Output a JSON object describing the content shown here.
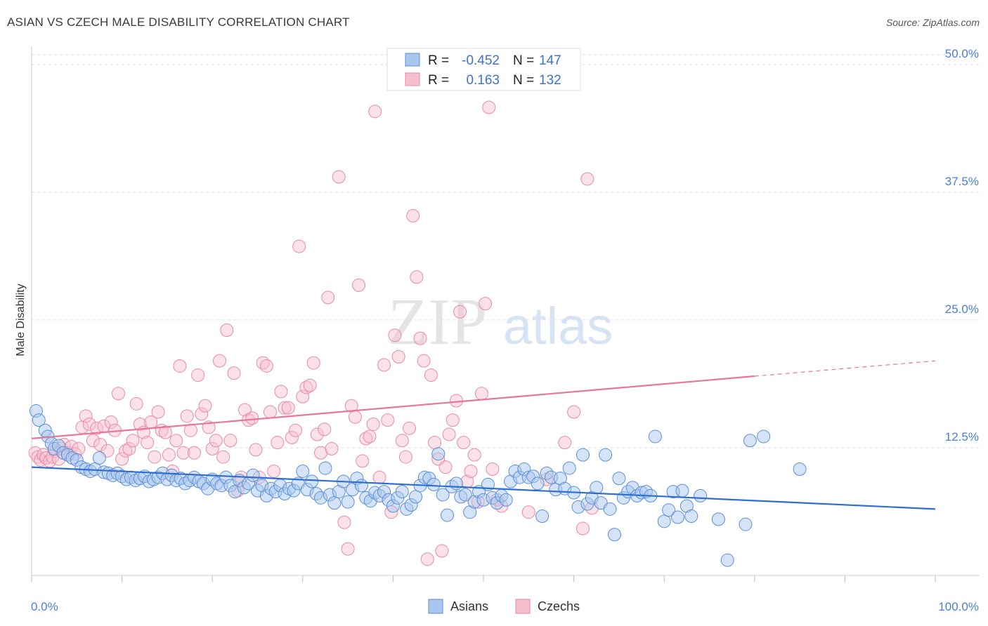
{
  "header": {
    "title": "ASIAN VS CZECH MALE DISABILITY CORRELATION CHART",
    "source": "Source: ZipAtlas.com"
  },
  "watermark": {
    "zip": "ZIP",
    "atlas": "atlas"
  },
  "legend_top": {
    "rows": [
      {
        "r_label": "R =",
        "r_value": "-0.452",
        "n_label": "N =",
        "n_value": "147"
      },
      {
        "r_label": "R =",
        "r_value": "0.163",
        "n_label": "N =",
        "n_value": "132"
      }
    ]
  },
  "legend_bottom": {
    "items": [
      "Asians",
      "Czechs"
    ]
  },
  "colors": {
    "asian_fill": "#a9c7ee",
    "asian_stroke": "#5b8fd6",
    "asian_line": "#2f6fd0",
    "czech_fill": "#f6bfcf",
    "czech_stroke": "#e889a6",
    "czech_line": "#e8759b",
    "tick_label": "#4a7fd4",
    "grid": "#dddddd"
  },
  "chart_data": {
    "type": "scatter",
    "title": "ASIAN VS CZECH MALE DISABILITY CORRELATION CHART",
    "xlabel": "",
    "ylabel": "Male Disability",
    "xlim": [
      0,
      100
    ],
    "ylim": [
      0,
      51.5
    ],
    "x_tick_labels": [
      "0.0%",
      "100.0%"
    ],
    "y_ticks": [
      12.5,
      25.0,
      37.5,
      50.0
    ],
    "y_tick_labels": [
      "12.5%",
      "25.0%",
      "37.5%",
      "50.0%"
    ],
    "grid": true,
    "legend_position": "top-center",
    "series": [
      {
        "name": "Asians",
        "r": -0.452,
        "n": 147,
        "trend": {
          "x": [
            0,
            100
          ],
          "y": [
            10.6,
            6.5
          ]
        },
        "points": [
          [
            0.5,
            16.1
          ],
          [
            0.8,
            15.2
          ],
          [
            1.5,
            14.2
          ],
          [
            1.8,
            13.6
          ],
          [
            2.2,
            12.9
          ],
          [
            2.5,
            12.4
          ],
          [
            3,
            12.7
          ],
          [
            3.5,
            12.0
          ],
          [
            4,
            11.8
          ],
          [
            4.5,
            11.5
          ],
          [
            5,
            11.3
          ],
          [
            5.5,
            10.6
          ],
          [
            6,
            10.4
          ],
          [
            6.5,
            10.2
          ],
          [
            7,
            10.4
          ],
          [
            7.5,
            11.5
          ],
          [
            8,
            10.1
          ],
          [
            8.5,
            10.0
          ],
          [
            9,
            9.8
          ],
          [
            9.5,
            10.0
          ],
          [
            10,
            9.7
          ],
          [
            10.5,
            9.4
          ],
          [
            11,
            9.6
          ],
          [
            11.5,
            9.3
          ],
          [
            12,
            9.5
          ],
          [
            12.5,
            9.7
          ],
          [
            13,
            9.2
          ],
          [
            13.5,
            9.4
          ],
          [
            14,
            9.6
          ],
          [
            14.5,
            10.0
          ],
          [
            15,
            9.4
          ],
          [
            15.5,
            9.8
          ],
          [
            16,
            9.3
          ],
          [
            16.5,
            9.5
          ],
          [
            17,
            9.0
          ],
          [
            17.5,
            9.3
          ],
          [
            18,
            9.6
          ],
          [
            18.5,
            9.2
          ],
          [
            19,
            9.0
          ],
          [
            19.5,
            8.5
          ],
          [
            20,
            9.4
          ],
          [
            20.5,
            9.0
          ],
          [
            21,
            8.8
          ],
          [
            21.5,
            9.6
          ],
          [
            22,
            8.8
          ],
          [
            22.5,
            8.2
          ],
          [
            23,
            9.3
          ],
          [
            23.5,
            8.6
          ],
          [
            24,
            9.0
          ],
          [
            24.5,
            9.8
          ],
          [
            25,
            8.3
          ],
          [
            25.5,
            8.8
          ],
          [
            26,
            7.8
          ],
          [
            26.5,
            8.5
          ],
          [
            27,
            8.2
          ],
          [
            27.5,
            8.8
          ],
          [
            28,
            8.0
          ],
          [
            28.5,
            8.5
          ],
          [
            29,
            8.3
          ],
          [
            29.5,
            9.0
          ],
          [
            30,
            10.2
          ],
          [
            30.5,
            8.4
          ],
          [
            31,
            9.2
          ],
          [
            31.5,
            8.0
          ],
          [
            32,
            7.6
          ],
          [
            32.5,
            10.5
          ],
          [
            33,
            7.9
          ],
          [
            33.5,
            7.1
          ],
          [
            34,
            8.2
          ],
          [
            34.5,
            9.2
          ],
          [
            35,
            7.2
          ],
          [
            35.5,
            8.4
          ],
          [
            36,
            9.5
          ],
          [
            36.5,
            8.8
          ],
          [
            37,
            7.6
          ],
          [
            37.5,
            7.3
          ],
          [
            38,
            8.1
          ],
          [
            38.5,
            7.8
          ],
          [
            39,
            8.2
          ],
          [
            39.5,
            7.4
          ],
          [
            40,
            6.8
          ],
          [
            40.5,
            7.6
          ],
          [
            41,
            8.2
          ],
          [
            41.5,
            6.5
          ],
          [
            42,
            6.9
          ],
          [
            42.5,
            7.7
          ],
          [
            43,
            8.8
          ],
          [
            43.5,
            9.6
          ],
          [
            44,
            9.5
          ],
          [
            44.5,
            8.9
          ],
          [
            45,
            11.9
          ],
          [
            45.5,
            7.9
          ],
          [
            46,
            5.9
          ],
          [
            46.5,
            8.7
          ],
          [
            47,
            9.0
          ],
          [
            47.5,
            7.7
          ],
          [
            48,
            7.9
          ],
          [
            48.5,
            6.2
          ],
          [
            49,
            7.2
          ],
          [
            49.5,
            8.2
          ],
          [
            50,
            7.4
          ],
          [
            50.5,
            8.9
          ],
          [
            51,
            7.6
          ],
          [
            51.5,
            7.1
          ],
          [
            52,
            7.8
          ],
          [
            52.5,
            7.4
          ],
          [
            53,
            9.2
          ],
          [
            53.5,
            10.2
          ],
          [
            54,
            9.6
          ],
          [
            54.5,
            10.4
          ],
          [
            55,
            9.6
          ],
          [
            55.5,
            9.7
          ],
          [
            56,
            9.0
          ],
          [
            56.5,
            5.8
          ],
          [
            57,
            10.0
          ],
          [
            57.5,
            9.6
          ],
          [
            58,
            8.4
          ],
          [
            58.5,
            9.5
          ],
          [
            59,
            8.5
          ],
          [
            59.5,
            10.5
          ],
          [
            60,
            8.1
          ],
          [
            60.5,
            6.7
          ],
          [
            61,
            11.8
          ],
          [
            61.5,
            7.0
          ],
          [
            62,
            7.6
          ],
          [
            62.5,
            8.6
          ],
          [
            63,
            7.1
          ],
          [
            63.5,
            11.8
          ],
          [
            64,
            6.5
          ],
          [
            64.5,
            4.0
          ],
          [
            65,
            9.5
          ],
          [
            65.5,
            7.6
          ],
          [
            66,
            8.2
          ],
          [
            66.5,
            8.6
          ],
          [
            67,
            7.8
          ],
          [
            67.5,
            8.1
          ],
          [
            68,
            8.2
          ],
          [
            68.5,
            7.8
          ],
          [
            69,
            13.6
          ],
          [
            70,
            5.3
          ],
          [
            70.5,
            6.4
          ],
          [
            71,
            8.2
          ],
          [
            71.5,
            5.7
          ],
          [
            72,
            8.3
          ],
          [
            72.5,
            6.8
          ],
          [
            73,
            5.8
          ],
          [
            74,
            7.8
          ],
          [
            76,
            5.5
          ],
          [
            77,
            1.5
          ],
          [
            79,
            5.0
          ],
          [
            79.5,
            13.2
          ],
          [
            81,
            13.6
          ],
          [
            85,
            10.4
          ]
        ]
      },
      {
        "name": "Czechs",
        "r": 0.163,
        "n": 132,
        "trend": {
          "x": [
            0,
            80
          ],
          "y": [
            13.4,
            19.5
          ]
        },
        "trend_dashed": {
          "x": [
            80,
            100
          ],
          "y": [
            19.5,
            21.0
          ]
        },
        "points": [
          [
            0.4,
            12.0
          ],
          [
            0.7,
            11.6
          ],
          [
            1,
            11.3
          ],
          [
            1.3,
            11.8
          ],
          [
            1.6,
            11.5
          ],
          [
            2,
            11.2
          ],
          [
            2.3,
            11.6
          ],
          [
            2.6,
            12.2
          ],
          [
            3,
            11.4
          ],
          [
            3.3,
            12.4
          ],
          [
            3.6,
            12.8
          ],
          [
            4,
            12.0
          ],
          [
            4.4,
            12.6
          ],
          [
            4.8,
            11.9
          ],
          [
            5.2,
            12.4
          ],
          [
            5.6,
            14.5
          ],
          [
            6,
            15.6
          ],
          [
            6.4,
            14.8
          ],
          [
            6.8,
            13.2
          ],
          [
            7.2,
            14.4
          ],
          [
            7.6,
            12.8
          ],
          [
            8,
            14.6
          ],
          [
            8.4,
            12.2
          ],
          [
            8.8,
            15.0
          ],
          [
            9.2,
            14.2
          ],
          [
            9.6,
            17.8
          ],
          [
            10,
            11.4
          ],
          [
            10.4,
            12.2
          ],
          [
            10.8,
            12.4
          ],
          [
            11.2,
            13.2
          ],
          [
            11.6,
            16.8
          ],
          [
            12,
            14.8
          ],
          [
            12.4,
            14.0
          ],
          [
            12.8,
            13.0
          ],
          [
            13.2,
            15.0
          ],
          [
            13.6,
            11.6
          ],
          [
            14,
            16.0
          ],
          [
            14.4,
            14.2
          ],
          [
            14.8,
            14.0
          ],
          [
            15.2,
            11.8
          ],
          [
            15.6,
            10.2
          ],
          [
            16,
            13.2
          ],
          [
            16.4,
            20.5
          ],
          [
            16.8,
            12.0
          ],
          [
            17.2,
            15.6
          ],
          [
            17.6,
            14.2
          ],
          [
            18,
            12.0
          ],
          [
            18.4,
            19.6
          ],
          [
            18.8,
            15.8
          ],
          [
            19.2,
            16.6
          ],
          [
            19.6,
            14.5
          ],
          [
            20,
            12.4
          ],
          [
            20.4,
            13.2
          ],
          [
            20.8,
            21.0
          ],
          [
            21.2,
            11.6
          ],
          [
            21.6,
            24.0
          ],
          [
            22,
            13.2
          ],
          [
            22.4,
            19.8
          ],
          [
            22.8,
            8.3
          ],
          [
            23.2,
            9.6
          ],
          [
            23.6,
            16.2
          ],
          [
            24,
            15.2
          ],
          [
            24.4,
            15.4
          ],
          [
            24.8,
            12.3
          ],
          [
            25.2,
            9.6
          ],
          [
            25.6,
            20.8
          ],
          [
            26,
            20.5
          ],
          [
            26.4,
            16.0
          ],
          [
            26.8,
            10.2
          ],
          [
            27.2,
            13.0
          ],
          [
            27.6,
            18.0
          ],
          [
            28,
            16.4
          ],
          [
            28.4,
            16.4
          ],
          [
            28.8,
            13.5
          ],
          [
            29.2,
            14.2
          ],
          [
            29.6,
            32.2
          ],
          [
            30,
            17.5
          ],
          [
            30.4,
            18.4
          ],
          [
            30.8,
            18.6
          ],
          [
            31.2,
            20.8
          ],
          [
            31.6,
            13.8
          ],
          [
            32,
            12.0
          ],
          [
            32.4,
            14.3
          ],
          [
            32.8,
            27.2
          ],
          [
            33.2,
            12.4
          ],
          [
            34,
            39.0
          ],
          [
            34.6,
            5.2
          ],
          [
            35,
            2.6
          ],
          [
            35.4,
            16.6
          ],
          [
            35.8,
            15.5
          ],
          [
            36.2,
            28.4
          ],
          [
            36.6,
            11.2
          ],
          [
            37,
            13.4
          ],
          [
            37.4,
            13.6
          ],
          [
            37.8,
            14.8
          ],
          [
            38,
            45.4
          ],
          [
            38.5,
            9.6
          ],
          [
            39,
            20.6
          ],
          [
            39.4,
            15.2
          ],
          [
            39.8,
            6.2
          ],
          [
            40.2,
            23.5
          ],
          [
            40.6,
            21.4
          ],
          [
            41,
            13.2
          ],
          [
            41.4,
            11.6
          ],
          [
            41.8,
            14.4
          ],
          [
            42.2,
            35.2
          ],
          [
            42.6,
            29.2
          ],
          [
            43,
            23.2
          ],
          [
            43.4,
            21.0
          ],
          [
            43.8,
            1.6
          ],
          [
            44.2,
            19.6
          ],
          [
            44.6,
            13.0
          ],
          [
            45,
            11.4
          ],
          [
            45.4,
            2.4
          ],
          [
            45.8,
            10.6
          ],
          [
            46.2,
            13.8
          ],
          [
            46.6,
            15.2
          ],
          [
            47,
            17.1
          ],
          [
            47.4,
            25.8
          ],
          [
            47.8,
            13.0
          ],
          [
            48.2,
            9.2
          ],
          [
            48.6,
            10.2
          ],
          [
            49,
            11.8
          ],
          [
            49.4,
            7.2
          ],
          [
            49.8,
            17.8
          ],
          [
            50.2,
            26.6
          ],
          [
            50.6,
            45.8
          ],
          [
            51,
            10.4
          ],
          [
            51.5,
            7.4
          ],
          [
            52,
            6.8
          ],
          [
            55,
            6.2
          ],
          [
            57,
            9.4
          ],
          [
            59,
            13.0
          ],
          [
            60,
            16.0
          ],
          [
            61,
            4.6
          ],
          [
            61.5,
            38.8
          ],
          [
            62,
            6.6
          ]
        ]
      }
    ]
  }
}
